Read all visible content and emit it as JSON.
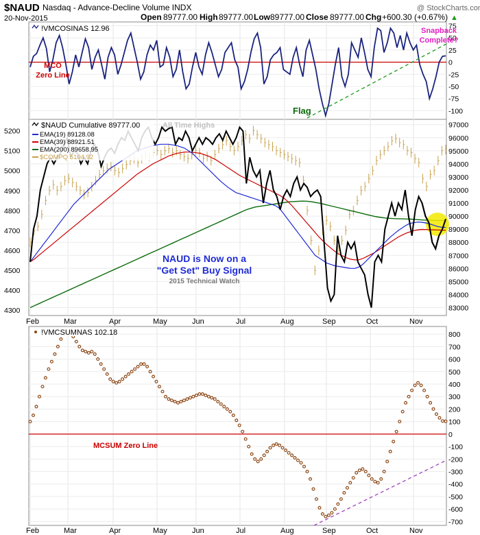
{
  "header": {
    "symbol": "$NAUD",
    "name": "Nasdaq - Advance-Decline Volume INDX",
    "watermark": "@ StockCharts.com",
    "date": "20-Nov-2015",
    "open_label": "Open",
    "open": "89777.00",
    "high_label": "High",
    "high": "89777.00",
    "low_label": "Low",
    "low": "89777.00",
    "close_label": "Close",
    "close": "89777.00",
    "chg_label": "Chg",
    "chg": "+600.30 (+0.67%)",
    "chg_arrow": "▲"
  },
  "months": [
    "Feb",
    "Mar",
    "Apr",
    "May",
    "Jun",
    "Jul",
    "Aug",
    "Sep",
    "Oct",
    "Nov"
  ],
  "colors": {
    "navy": "#1a237e",
    "black": "#000000",
    "blue": "#1f2bd6",
    "red": "#cc0000",
    "green": "#0b6b0b",
    "gold": "#c8a04a",
    "brown": "#8b4513",
    "magenta": "#e020c0",
    "purple": "#a040c0",
    "yellow": "#f2ea00"
  },
  "chart_data": [
    {
      "type": "line",
      "panel": "top",
      "title": "!VMCOSINAS 12.96",
      "ylim": [
        -115,
        80
      ],
      "yticks": [
        75,
        50,
        25,
        0,
        -25,
        -50,
        -75,
        -100
      ],
      "annotations": {
        "zero_line": "MCO\nZero Line",
        "flag": "Flag",
        "snapback": "Snapback\nComplete?"
      },
      "series": [
        {
          "name": "!VMCOSINAS",
          "values": [
            -10,
            12,
            18,
            35,
            50,
            28,
            -20,
            5,
            40,
            55,
            30,
            -5,
            -45,
            -20,
            15,
            -10,
            20,
            48,
            30,
            -15,
            10,
            25,
            -5,
            -35,
            10,
            30,
            15,
            -25,
            -5,
            20,
            45,
            60,
            30,
            0,
            -35,
            -20,
            15,
            35,
            25,
            45,
            -10,
            -5,
            30,
            10,
            -30,
            -15,
            25,
            -20,
            -55,
            -45,
            -10,
            20,
            -10,
            -25,
            15,
            40,
            20,
            -5,
            -30,
            -15,
            20,
            30,
            40,
            5,
            -10,
            -55,
            -40,
            -15,
            20,
            48,
            60,
            30,
            -45,
            -30,
            5,
            15,
            20,
            30,
            -15,
            -20,
            -25,
            10,
            30,
            -5,
            -30,
            25,
            45,
            15,
            -15,
            -55,
            -85,
            -110,
            -85,
            -45,
            -5,
            30,
            -30,
            -50,
            -25,
            40,
            25,
            10,
            50,
            20,
            -15,
            -30,
            30,
            70,
            65,
            20,
            40,
            70,
            60,
            30,
            55,
            25,
            60,
            40,
            25,
            35,
            -5,
            -25,
            -40,
            -75,
            -55,
            -30,
            0,
            12,
            13
          ]
        }
      ]
    },
    {
      "type": "line",
      "panel": "middle",
      "title": "$NAUD Cumulative 89777.00",
      "ylim_left": [
        4280,
        5250
      ],
      "ylim_right": [
        82500,
        97300
      ],
      "yticks_left": [
        5200,
        5100,
        5000,
        4900,
        4800,
        4700,
        4600,
        4500,
        4400,
        4300
      ],
      "yticks_right": [
        97000,
        96000,
        95000,
        94000,
        93000,
        92000,
        91000,
        90000,
        89000,
        88000,
        87000,
        86000,
        85000,
        84000,
        83000
      ],
      "legend": [
        "EMA(19) 89128.08",
        "EMA(39) 88921.51",
        "EMA(200) 89658.95",
        "$COMPQ 5104.92"
      ],
      "annotations": {
        "all_time_highs": "All Time Highs",
        "signal_line1": "NAUD is Now on a",
        "signal_line2": "\"Get Set\" Buy Signal",
        "signal_credit": "2015 Technical Watch"
      },
      "series": [
        {
          "name": "$NAUD Cumulative",
          "values": [
            86500,
            89000,
            90000,
            92000,
            93000,
            94000,
            94500,
            94000,
            94500,
            94800,
            95500,
            96000,
            94500,
            95000,
            94800,
            94000,
            94500,
            94000,
            95000,
            95500,
            95000,
            93800,
            94500,
            95000,
            95200,
            94800,
            95500,
            96000,
            95800,
            96500,
            96000,
            95500,
            95000,
            96000,
            96500,
            96800,
            96000,
            95500,
            96000,
            96800,
            96500,
            96700,
            96800,
            95500,
            96000,
            95800,
            96500,
            96000,
            95000,
            95500,
            96000,
            95500,
            96000,
            95800,
            95500,
            96000,
            96300,
            95800,
            96500,
            96000,
            95500,
            96000,
            96800,
            96500,
            92500,
            94500,
            93500,
            93000,
            93500,
            91000,
            92500,
            93500,
            92000,
            91500,
            90500,
            91500,
            92000,
            91500,
            92500,
            93000,
            92000,
            92500,
            92200,
            91500,
            91800,
            92000,
            91500,
            88000,
            84500,
            83500,
            84000,
            88500,
            87000,
            86500,
            88000,
            87500,
            88000,
            86500,
            86000,
            85500,
            84000,
            83000,
            86500,
            87000,
            86500,
            89000,
            90000,
            91000,
            90000,
            91000,
            90500,
            92000,
            90000,
            88500,
            90500,
            91500,
            91000,
            90000,
            89500,
            88000,
            87500,
            88500,
            89000,
            89777
          ]
        },
        {
          "name": "EMA(19)",
          "values": [
            86500,
            86900,
            87300,
            87700,
            88100,
            88500,
            88900,
            89300,
            89700,
            90100,
            90500,
            90900,
            91200,
            91500,
            91800,
            92100,
            92400,
            92700,
            93000,
            93300,
            93600,
            93800,
            94000,
            94200,
            94400,
            94600,
            94800,
            95000,
            95100,
            95200,
            95300,
            95400,
            95450,
            95500,
            95500,
            95500,
            95450,
            95400,
            95300,
            95200,
            95000,
            94800,
            94500,
            94200,
            93900,
            93600,
            93300,
            93000,
            92700,
            92450,
            92200,
            92000,
            91800,
            91700,
            91600,
            91500,
            91400,
            91300,
            91200,
            91100,
            91000,
            90900,
            90800,
            90600,
            90200,
            89800,
            89400,
            89000,
            88600,
            88200,
            87800,
            87400,
            87000,
            86800,
            86600,
            86400,
            86300,
            86200,
            86150,
            86100,
            86050,
            86000,
            86000,
            86100,
            86300,
            86600,
            86900,
            87200,
            87500,
            87800,
            88100,
            88400,
            88650,
            88900,
            89100,
            89300,
            89450,
            89500,
            89550,
            89520,
            89480,
            89400,
            89300,
            89200,
            89150,
            89128
          ]
        },
        {
          "name": "EMA(39)",
          "values": [
            86500,
            86700,
            86950,
            87200,
            87450,
            87700,
            87950,
            88200,
            88450,
            88700,
            88950,
            89200,
            89450,
            89700,
            89950,
            90200,
            90450,
            90700,
            90950,
            91200,
            91450,
            91700,
            91950,
            92200,
            92450,
            92700,
            92950,
            93200,
            93400,
            93600,
            93800,
            94000,
            94150,
            94300,
            94450,
            94600,
            94700,
            94800,
            94850,
            94900,
            94900,
            94880,
            94850,
            94800,
            94700,
            94600,
            94450,
            94300,
            94100,
            93900,
            93700,
            93500,
            93300,
            93100,
            92950,
            92800,
            92650,
            92500,
            92350,
            92200,
            92050,
            91900,
            91750,
            91600,
            91400,
            91150,
            90850,
            90500,
            90150,
            89800,
            89450,
            89100,
            88750,
            88400,
            88100,
            87800,
            87550,
            87300,
            87100,
            86950,
            86800,
            86700,
            86650,
            86650,
            86750,
            86900,
            87050,
            87200,
            87400,
            87600,
            87800,
            88000,
            88200,
            88400,
            88550,
            88700,
            88800,
            88900,
            88950,
            88980,
            88970,
            88960,
            88950,
            88940,
            88930,
            88921
          ]
        },
        {
          "name": "EMA(200)",
          "values": [
            83000,
            83150,
            83300,
            83450,
            83600,
            83750,
            83900,
            84050,
            84200,
            84350,
            84500,
            84650,
            84800,
            84950,
            85100,
            85250,
            85400,
            85550,
            85700,
            85850,
            86000,
            86150,
            86300,
            86450,
            86600,
            86750,
            86900,
            87050,
            87200,
            87350,
            87500,
            87650,
            87800,
            87950,
            88100,
            88250,
            88400,
            88550,
            88700,
            88850,
            89000,
            89150,
            89300,
            89450,
            89600,
            89750,
            89900,
            90050,
            90200,
            90350,
            90500,
            90600,
            90700,
            90750,
            90800,
            90850,
            90900,
            90950,
            91000,
            91050,
            91100,
            91120,
            91140,
            91150,
            91140,
            91100,
            91040,
            90980,
            90900,
            90820,
            90740,
            90660,
            90580,
            90500,
            90420,
            90340,
            90260,
            90180,
            90100,
            90020,
            89950,
            89900,
            89860,
            89830,
            89810,
            89800,
            89790,
            89780,
            89770,
            89750,
            89720,
            89700,
            89690,
            89680,
            89670,
            89660,
            89659
          ]
        },
        {
          "name": "$COMPQ",
          "values": [
            4640,
            4700,
            4720,
            4780,
            4850,
            4900,
            4930,
            4900,
            4920,
            4950,
            4960,
            4940,
            4920,
            4900,
            4880,
            4890,
            4920,
            4950,
            4980,
            5000,
            5010,
            5020,
            5000,
            4990,
            5010,
            5030,
            5050,
            5060,
            5040,
            5060,
            5080,
            5070,
            5090,
            5100,
            5080,
            5100,
            5110,
            5090,
            5100,
            5080,
            5070,
            5060,
            5080,
            5100,
            5090,
            5060,
            5070,
            5050,
            5080,
            5110,
            5130,
            5150,
            5120,
            5100,
            5120,
            5150,
            5180,
            5160,
            5200,
            5180,
            5160,
            5140,
            5130,
            5120,
            5100,
            5090,
            5080,
            5070,
            5060,
            5050,
            5040,
            4950,
            4800,
            4650,
            4500,
            4600,
            4700,
            4750,
            4720,
            4650,
            4600,
            4650,
            4700,
            4780,
            4800,
            4850,
            4900,
            4920,
            4960,
            5000,
            5050,
            5080,
            5100,
            5120,
            5150,
            5160,
            5140,
            5130,
            5100,
            5090,
            5060,
            5040,
            4960,
            4920,
            4980,
            5000,
            5050,
            5100,
            5105
          ]
        }
      ]
    },
    {
      "type": "scatter",
      "panel": "bottom",
      "title": "!VMCSUMNAS 102.18",
      "ylim": [
        -720,
        850
      ],
      "yticks": [
        800,
        700,
        600,
        500,
        400,
        300,
        200,
        100,
        0,
        -100,
        -200,
        -300,
        -400,
        -500,
        -600,
        -700
      ],
      "annotations": {
        "zero_line": "MCSUM Zero Line"
      },
      "series": [
        {
          "name": "!VMCSUMNAS",
          "values": [
            100,
            150,
            220,
            300,
            380,
            450,
            520,
            580,
            640,
            700,
            760,
            800,
            820,
            810,
            780,
            740,
            700,
            670,
            660,
            650,
            660,
            640,
            600,
            560,
            520,
            480,
            440,
            420,
            410,
            420,
            440,
            460,
            480,
            500,
            520,
            540,
            560,
            560,
            540,
            500,
            460,
            420,
            380,
            340,
            300,
            280,
            270,
            260,
            250,
            260,
            270,
            280,
            290,
            300,
            310,
            320,
            320,
            310,
            300,
            290,
            280,
            260,
            240,
            220,
            200,
            180,
            150,
            110,
            70,
            20,
            -40,
            -100,
            -160,
            -200,
            -220,
            -200,
            -170,
            -140,
            -110,
            -90,
            -80,
            -90,
            -110,
            -130,
            -150,
            -170,
            -190,
            -210,
            -230,
            -260,
            -300,
            -360,
            -440,
            -520,
            -590,
            -640,
            -660,
            -650,
            -630,
            -600,
            -560,
            -520,
            -470,
            -430,
            -390,
            -350,
            -310,
            -290,
            -280,
            -300,
            -330,
            -360,
            -380,
            -390,
            -360,
            -300,
            -220,
            -140,
            -60,
            20,
            100,
            180,
            250,
            300,
            350,
            390,
            410,
            390,
            350,
            300,
            250,
            200,
            160,
            130,
            105,
            102
          ]
        }
      ]
    }
  ]
}
